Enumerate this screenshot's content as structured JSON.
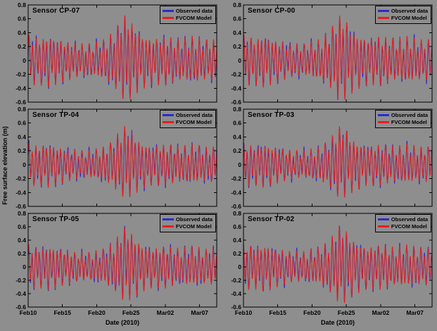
{
  "figure": {
    "background": "#8e8e8e",
    "colors": {
      "observed": "#2b2bd0",
      "model": "#e51f1f"
    },
    "legend": {
      "observed": "Observed data",
      "model": "FVCOM Model"
    }
  },
  "chart_data": {
    "type": "line",
    "layout": "2x3 grid of subplots, legend top-right inside each subplot, gray figure background, black axes boxes",
    "x_axis": {
      "label": "Date (2010)",
      "tick_labels": [
        "Feb10",
        "Feb15",
        "Feb20",
        "Feb25",
        "Mar02",
        "Mar07"
      ],
      "tick_days": [
        0,
        5,
        10,
        15,
        20,
        25
      ],
      "range_days": [
        0,
        27.5
      ]
    },
    "y_axis": {
      "label": "Free surface elevation (m)",
      "tick_labels": [
        "0.8",
        "0.6",
        "0.4",
        "0.2",
        "0",
        "-0.2",
        "-0.4",
        "-0.6"
      ],
      "tick_values": [
        0.8,
        0.6,
        0.4,
        0.2,
        0,
        -0.2,
        -0.4,
        -0.6
      ],
      "range": [
        -0.6,
        0.8
      ]
    },
    "panels": [
      {
        "title": "Sensor CP-07",
        "phase": 0.0,
        "amp_scale": 1.0
      },
      {
        "title": "Sensor CP-00",
        "phase": 0.9,
        "amp_scale": 1.0
      },
      {
        "title": "Sensor TP-04",
        "phase": 0.35,
        "amp_scale": 0.85
      },
      {
        "title": "Sensor TP-03",
        "phase": 1.2,
        "amp_scale": 0.85
      },
      {
        "title": "Sensor TP-05",
        "phase": 0.6,
        "amp_scale": 0.9
      },
      {
        "title": "Sensor TP-02",
        "phase": 1.5,
        "amp_scale": 0.95
      }
    ],
    "tide": {
      "description": "Semidiurnal tidal elevation with spring-neap modulation; neap around Feb18-20, strong spring/surge peak near Feb24 reaching ~0.65-0.7 m, troughs to ~-0.55 m",
      "period_days": 0.5175,
      "diurnal_period_days": 1.0758,
      "diurnal_fraction": 0.35,
      "envelope_days": [
        0,
        1.5,
        3,
        5,
        7,
        9,
        11,
        12.5,
        13.6,
        14.4,
        15.2,
        16.5,
        18,
        20,
        22,
        24,
        26,
        27.5
      ],
      "envelope_amp": [
        0.34,
        0.3,
        0.33,
        0.27,
        0.22,
        0.21,
        0.26,
        0.36,
        0.52,
        0.58,
        0.48,
        0.36,
        0.3,
        0.32,
        0.27,
        0.3,
        0.26,
        0.28
      ],
      "surge": {
        "center_day": 14.4,
        "width_days": 1.3,
        "height": 0.05
      },
      "model_phase_offset": 0.18,
      "model_amp_ratio": 1.05,
      "obs_noise": {
        "amp": 0.035,
        "period_days": 0.19
      },
      "samples_per_day": 40
    }
  }
}
